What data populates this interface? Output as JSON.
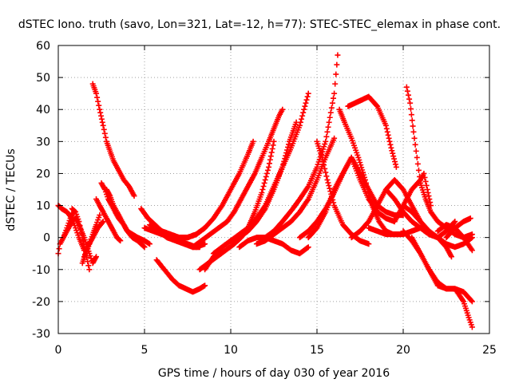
{
  "chart_data": {
    "type": "scatter",
    "title": "dSTEC Iono. truth (savo, Lon=321, Lat=-12, h=77): STEC-STEC_elemax in phase cont.",
    "xlabel": "GPS time / hours of day 030 of year 2016",
    "ylabel": "dSTEC  / TECUs",
    "xlim": [
      0,
      25
    ],
    "ylim": [
      -30,
      60
    ],
    "xticks": [
      0,
      5,
      10,
      15,
      20,
      25
    ],
    "yticks": [
      -30,
      -20,
      -10,
      0,
      10,
      20,
      30,
      40,
      50,
      60
    ],
    "grid": true,
    "legend": "none",
    "marker": "+",
    "color": "#ff0000",
    "series": [
      {
        "x": [
          0.0,
          0.1,
          0.3,
          0.5,
          0.7,
          0.9
        ],
        "y": [
          -5,
          -2,
          0,
          3,
          6,
          8
        ]
      },
      {
        "x": [
          0.0,
          0.2,
          0.5,
          0.8,
          1.0,
          1.2,
          1.5
        ],
        "y": [
          10,
          9,
          8,
          6,
          3,
          0,
          -4
        ]
      },
      {
        "x": [
          0.8,
          1.0,
          1.2,
          1.4,
          1.6,
          1.8
        ],
        "y": [
          9,
          8,
          5,
          0,
          -5,
          -10
        ]
      },
      {
        "x": [
          0.3,
          0.5,
          0.8,
          1.0,
          1.2,
          1.5,
          1.8,
          2.0,
          2.2
        ],
        "y": [
          0,
          2,
          5,
          6,
          4,
          0,
          -5,
          -8,
          -6
        ]
      },
      {
        "x": [
          1.4,
          1.6,
          1.8,
          2.0,
          2.2,
          2.4
        ],
        "y": [
          -8,
          -5,
          -2,
          1,
          4,
          7
        ]
      },
      {
        "x": [
          1.5,
          1.7,
          2.0,
          2.3,
          2.6
        ],
        "y": [
          -6,
          -3,
          0,
          3,
          5
        ]
      },
      {
        "x": [
          2.0,
          2.2,
          2.4,
          2.6,
          2.8,
          3.0,
          3.2,
          3.5,
          3.8,
          4.1,
          4.4
        ],
        "y": [
          48,
          45,
          40,
          35,
          30,
          27,
          24,
          21,
          18,
          16,
          13
        ]
      },
      {
        "x": [
          2.2,
          2.4,
          2.6,
          2.8,
          3.0,
          3.2,
          3.4,
          3.6
        ],
        "y": [
          12,
          10,
          8,
          6,
          4,
          2,
          0,
          -1
        ]
      },
      {
        "x": [
          2.5,
          2.7,
          2.9,
          3.1,
          3.3,
          3.5,
          3.8,
          4.0,
          4.3,
          4.6,
          5.0,
          5.3
        ],
        "y": [
          17,
          15,
          12,
          10,
          8,
          6,
          4,
          2,
          1,
          0,
          -1,
          -2
        ]
      },
      {
        "x": [
          2.8,
          3.0,
          3.2,
          3.4,
          3.6,
          3.8,
          4.0,
          4.3,
          4.6,
          5.0
        ],
        "y": [
          15,
          13,
          10,
          8,
          6,
          4,
          2,
          0,
          -1,
          -3
        ]
      },
      {
        "x": [
          4.8,
          5.2,
          5.6,
          6.0,
          6.5,
          7.0,
          7.5,
          8.0
        ],
        "y": [
          9,
          6,
          4,
          2,
          1,
          0,
          0,
          1
        ]
      },
      {
        "x": [
          5.3,
          5.8,
          6.3,
          6.8,
          7.3,
          7.8,
          8.2
        ],
        "y": [
          4,
          2,
          0,
          -1,
          -2,
          -3,
          -3
        ]
      },
      {
        "x": [
          5.0,
          5.5,
          6.0,
          6.5,
          7.0,
          7.5,
          8.0,
          8.5
        ],
        "y": [
          3,
          2,
          1,
          0,
          -1,
          -2,
          -3,
          -2
        ]
      },
      {
        "x": [
          5.7,
          6.0,
          6.3,
          6.6,
          7.0,
          7.4,
          7.8,
          8.2,
          8.5
        ],
        "y": [
          -7,
          -9,
          -11,
          -13,
          -15,
          -16,
          -17,
          -16,
          -15
        ]
      },
      {
        "x": [
          6.0,
          6.5,
          7.0,
          7.5,
          8.0,
          8.5
        ],
        "y": [
          2,
          1,
          0,
          0,
          1,
          3
        ]
      },
      {
        "x": [
          7.5,
          8.0,
          8.5,
          9.0,
          9.5,
          10.0,
          10.5,
          11.0,
          11.3
        ],
        "y": [
          0,
          1,
          3,
          6,
          10,
          15,
          20,
          26,
          30
        ]
      },
      {
        "x": [
          7.8,
          8.3,
          8.8,
          9.3,
          9.8,
          10.2,
          10.6,
          11.0,
          11.4,
          11.8,
          12.2,
          12.5,
          12.8,
          13.0
        ],
        "y": [
          -3,
          -1,
          1,
          3,
          5,
          8,
          12,
          16,
          20,
          25,
          30,
          34,
          38,
          40
        ]
      },
      {
        "x": [
          8.2,
          8.7,
          9.2,
          9.7,
          10.2,
          10.6,
          11.0,
          11.4,
          11.8,
          12.2,
          12.5
        ],
        "y": [
          -10,
          -8,
          -6,
          -4,
          -2,
          0,
          3,
          8,
          14,
          22,
          30
        ]
      },
      {
        "x": [
          8.5,
          9.0,
          9.5,
          10.0,
          10.5,
          11.0,
          11.5,
          12.0,
          12.5,
          13.0,
          13.5,
          14.0,
          14.5
        ],
        "y": [
          -10,
          -6,
          -3,
          -1,
          1,
          3,
          6,
          10,
          16,
          22,
          28,
          35,
          45
        ]
      },
      {
        "x": [
          9.0,
          9.5,
          10.0,
          10.5,
          11.0,
          11.5,
          12.0,
          12.5,
          13.0,
          13.4,
          13.8
        ],
        "y": [
          -5,
          -3,
          -1,
          0,
          2,
          5,
          9,
          15,
          22,
          30,
          36
        ]
      },
      {
        "x": [
          10.5,
          11.0,
          11.5,
          12.0,
          12.5,
          13.0,
          13.5,
          14.0,
          14.5
        ],
        "y": [
          -3,
          -1,
          0,
          0,
          -1,
          -2,
          -4,
          -5,
          -3
        ]
      },
      {
        "x": [
          11.5,
          12.0,
          12.5,
          13.0,
          13.5,
          14.0,
          14.5,
          15.0,
          15.5,
          16.0
        ],
        "y": [
          -2,
          -1,
          1,
          3,
          5,
          8,
          12,
          18,
          25,
          31
        ]
      },
      {
        "x": [
          12.0,
          12.5,
          13.0,
          13.3,
          13.6,
          14.0,
          14.5,
          15.0,
          15.5,
          16.0,
          16.2
        ],
        "y": [
          0,
          2,
          5,
          7,
          9,
          12,
          16,
          22,
          30,
          45,
          57
        ]
      },
      {
        "x": [
          14.0,
          14.5,
          15.0,
          15.5,
          16.0,
          16.5,
          17.0,
          17.5,
          18.0,
          18.5,
          19.0,
          19.5
        ],
        "y": [
          0,
          2,
          5,
          9,
          14,
          20,
          25,
          18,
          12,
          8,
          6,
          5
        ]
      },
      {
        "x": [
          15.0,
          15.3,
          15.6,
          16.0,
          16.5,
          17.0,
          17.5,
          18.0
        ],
        "y": [
          30,
          25,
          18,
          10,
          4,
          1,
          -1,
          -2
        ]
      },
      {
        "x": [
          14.5,
          15.0,
          15.5,
          16.0,
          16.5,
          17.0,
          17.5,
          18.0,
          18.5,
          19.0,
          19.5,
          20.0
        ],
        "y": [
          0,
          3,
          8,
          15,
          20,
          25,
          20,
          15,
          10,
          8,
          7,
          7
        ]
      },
      {
        "x": [
          16.3,
          16.6,
          17.0,
          17.4,
          17.8,
          18.2,
          18.6,
          19.0,
          19.4,
          19.8
        ],
        "y": [
          40,
          36,
          31,
          25,
          18,
          10,
          5,
          2,
          1,
          1
        ]
      },
      {
        "x": [
          16.8,
          17.2,
          17.6,
          18.0,
          18.5,
          19.0,
          19.3,
          19.6
        ],
        "y": [
          41,
          42,
          43,
          44,
          41,
          35,
          28,
          22
        ]
      },
      {
        "x": [
          17.0,
          17.5,
          18.0,
          18.5,
          19.0,
          19.5,
          20.0,
          20.5,
          21.0
        ],
        "y": [
          0,
          2,
          5,
          10,
          15,
          18,
          15,
          10,
          5
        ]
      },
      {
        "x": [
          18.0,
          18.5,
          19.0,
          19.5,
          20.0,
          20.5,
          21.0,
          21.5,
          22.0,
          22.5,
          23.0
        ],
        "y": [
          3,
          2,
          1,
          1,
          1,
          2,
          3,
          1,
          0,
          2,
          5
        ]
      },
      {
        "x": [
          19.0,
          19.5,
          20.0,
          20.5,
          21.0,
          21.5,
          22.0,
          22.5,
          23.0,
          23.5,
          24.0
        ],
        "y": [
          15,
          12,
          8,
          5,
          3,
          1,
          0,
          -2,
          -3,
          -2,
          0
        ]
      },
      {
        "x": [
          20.2,
          20.4,
          20.6,
          20.8,
          21.0,
          21.3,
          21.6,
          22.0,
          22.5,
          23.0,
          23.5,
          24.0
        ],
        "y": [
          47,
          42,
          33,
          25,
          17,
          12,
          8,
          5,
          3,
          1,
          0,
          1
        ]
      },
      {
        "x": [
          19.5,
          20.0,
          20.5,
          21.0,
          21.2,
          21.4,
          21.6
        ],
        "y": [
          5,
          10,
          15,
          18,
          20,
          15,
          10
        ]
      },
      {
        "x": [
          20.0,
          20.5,
          21.0,
          21.5,
          22.0,
          22.5,
          22.8
        ],
        "y": [
          10,
          8,
          5,
          2,
          0,
          -3,
          -6
        ]
      },
      {
        "x": [
          20.5,
          21.0,
          21.5,
          22.0,
          22.5,
          23.0,
          23.5,
          24.0
        ],
        "y": [
          0,
          -5,
          -10,
          -15,
          -16,
          -16,
          -17,
          -20
        ]
      },
      {
        "x": [
          20.0,
          20.5,
          21.0,
          21.5,
          22.0,
          22.5,
          23.0,
          23.5,
          23.8,
          24.0
        ],
        "y": [
          2,
          -1,
          -5,
          -10,
          -14,
          -16,
          -16,
          -20,
          -25,
          -28
        ]
      },
      {
        "x": [
          22.0,
          22.5,
          23.0,
          23.5,
          24.0
        ],
        "y": [
          2,
          4,
          3,
          0,
          -4
        ]
      },
      {
        "x": [
          22.5,
          23.0,
          23.5,
          23.9
        ],
        "y": [
          0,
          3,
          5,
          6
        ]
      }
    ]
  }
}
